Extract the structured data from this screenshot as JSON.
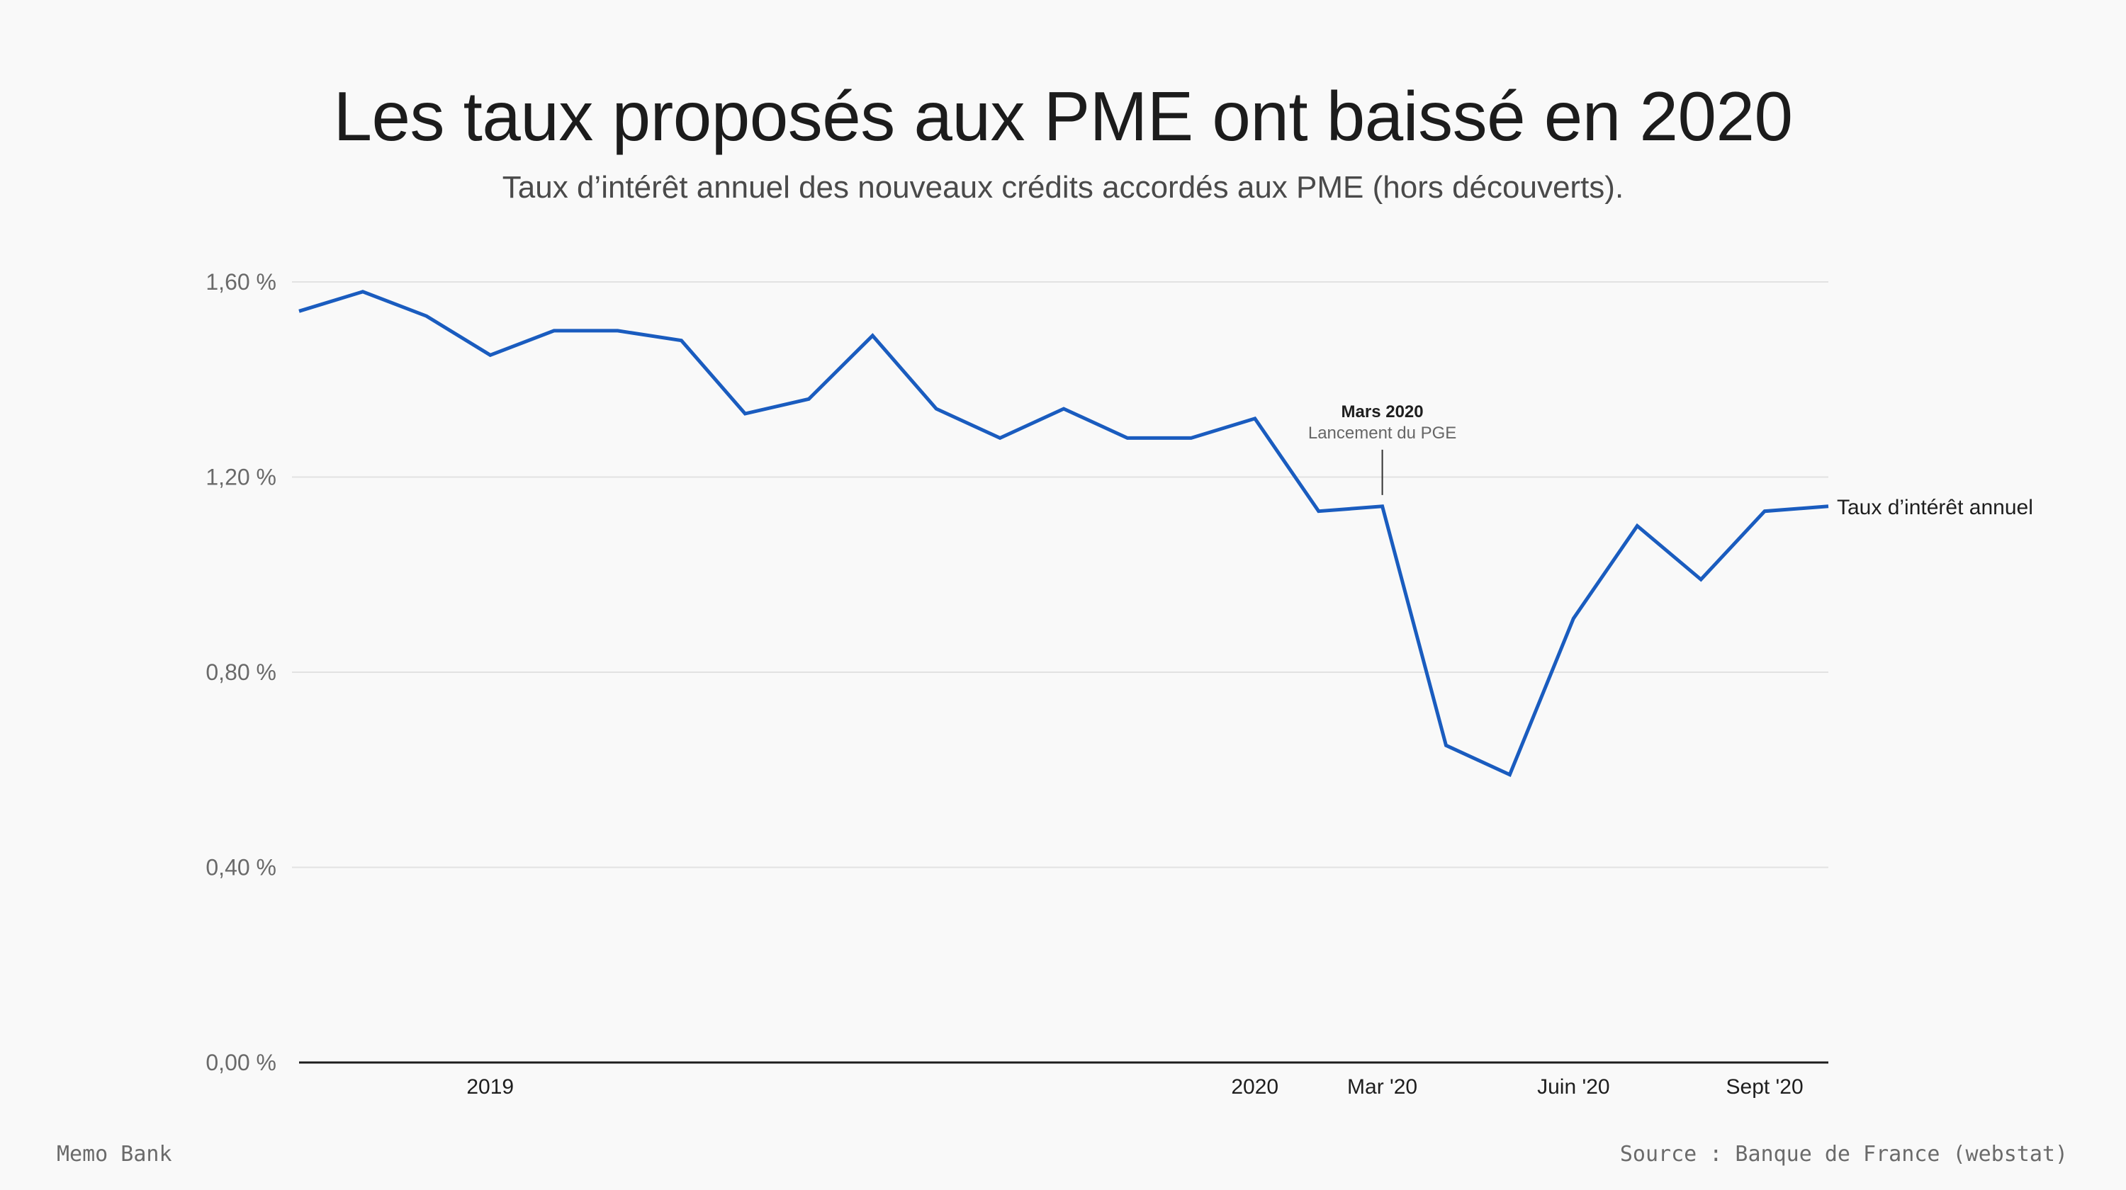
{
  "header": {
    "title": "Les taux proposés aux PME ont baissé en 2020",
    "subtitle": "Taux d’intérêt annuel des nouveaux crédits accordés aux PME (hors découverts)."
  },
  "footer": {
    "brand": "Memo Bank",
    "source": "Source : Banque de France (webstat)"
  },
  "colors": {
    "line": "#1a5cbf",
    "grid": "#e2e2e2",
    "axis": "#1e1e1e"
  },
  "chart_data": {
    "type": "line",
    "title": "Les taux proposés aux PME ont baissé en 2020",
    "subtitle": "Taux d’intérêt annuel des nouveaux crédits accordés aux PME (hors découverts).",
    "xlabel": "",
    "ylabel": "",
    "ylim": [
      0,
      1.6
    ],
    "yticks": [
      {
        "value": 0,
        "label": "0,00 %"
      },
      {
        "value": 0.4,
        "label": "0,40 %"
      },
      {
        "value": 0.8,
        "label": "0,80 %"
      },
      {
        "value": 1.2,
        "label": "1,20 %"
      },
      {
        "value": 1.6,
        "label": "1,60 %"
      }
    ],
    "x": [
      "2018-10",
      "2018-11",
      "2018-12",
      "2019-01",
      "2019-02",
      "2019-03",
      "2019-04",
      "2019-05",
      "2019-06",
      "2019-07",
      "2019-08",
      "2019-09",
      "2019-10",
      "2019-11",
      "2019-12",
      "2020-01",
      "2020-02",
      "2020-03",
      "2020-04",
      "2020-05",
      "2020-06",
      "2020-07",
      "2020-08",
      "2020-09",
      "2020-10"
    ],
    "xticks": [
      {
        "x": "2019-01",
        "label": "2019"
      },
      {
        "x": "2020-01",
        "label": "2020"
      },
      {
        "x": "2020-03",
        "label": "Mar '20"
      },
      {
        "x": "2020-06",
        "label": "Juin '20"
      },
      {
        "x": "2020-09",
        "label": "Sept '20"
      }
    ],
    "series": [
      {
        "name": "Taux d’intérêt annuel",
        "values": [
          1.54,
          1.58,
          1.53,
          1.45,
          1.5,
          1.5,
          1.48,
          1.33,
          1.36,
          1.49,
          1.34,
          1.28,
          1.34,
          1.28,
          1.28,
          1.32,
          1.13,
          1.14,
          0.65,
          0.59,
          0.91,
          1.1,
          0.99,
          1.13,
          1.14
        ]
      }
    ],
    "annotations": [
      {
        "x": "2020-03",
        "title": "Mars 2020",
        "text": "Lancement du PGE"
      }
    ],
    "grid": true,
    "legend": "end-of-line label"
  }
}
